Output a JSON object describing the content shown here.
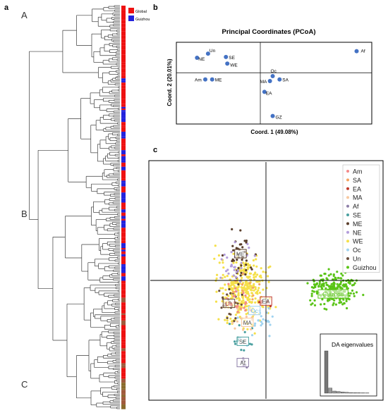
{
  "panel_labels": {
    "a": "a",
    "b": "b",
    "c": "c"
  },
  "colors": {
    "global": "#ee1111",
    "guizhou": "#2222dd",
    "tree": "#3a3a3a",
    "pcoa_point": "#4472c4",
    "frame": "#000000"
  },
  "chart_data": [
    {
      "panel": "a",
      "type": "other",
      "description_kind": "phylogenetic-tree",
      "clade_labels": [
        "A",
        "B",
        "C"
      ],
      "legend": [
        {
          "name": "Global",
          "color": "#ee1111"
        },
        {
          "name": "Guizhou",
          "color": "#2222dd"
        }
      ]
    },
    {
      "panel": "b",
      "type": "scatter",
      "title": "Principal Coordinates (PCoA)",
      "xlabel": "Coord. 1 (49.08%)",
      "ylabel": "Coord. 2 (20.01%)",
      "xlim": [
        -0.6,
        0.8
      ],
      "ylim": [
        -0.6,
        0.35
      ],
      "grid": false,
      "points": [
        {
          "label": "Af",
          "x": 0.7,
          "y": 0.26
        },
        {
          "label": "Un",
          "x": -0.38,
          "y": 0.23
        },
        {
          "label": "NE",
          "x": -0.46,
          "y": 0.18
        },
        {
          "label": "SE",
          "x": -0.25,
          "y": 0.19
        },
        {
          "label": "WE",
          "x": -0.24,
          "y": 0.11
        },
        {
          "label": "Oc",
          "x": 0.09,
          "y": -0.04
        },
        {
          "label": "SA",
          "x": 0.14,
          "y": -0.08
        },
        {
          "label": "MA",
          "x": 0.07,
          "y": -0.1
        },
        {
          "label": "Am",
          "x": -0.4,
          "y": -0.08
        },
        {
          "label": "ME",
          "x": -0.35,
          "y": -0.08
        },
        {
          "label": "EA",
          "x": 0.03,
          "y": -0.23
        },
        {
          "label": "GZ",
          "x": 0.09,
          "y": -0.52
        }
      ]
    },
    {
      "panel": "c",
      "type": "scatter",
      "title": "",
      "xlim": [
        -5,
        5
      ],
      "ylim": [
        -5,
        5
      ],
      "grid": false,
      "legend_position": "top-right",
      "series": [
        {
          "name": "Am",
          "color": "#f48a8a"
        },
        {
          "name": "SA",
          "color": "#f4a460"
        },
        {
          "name": "EA",
          "color": "#c0392b"
        },
        {
          "name": "MA",
          "color": "#f7c8a0"
        },
        {
          "name": "Af",
          "color": "#8e7fa8"
        },
        {
          "name": "SE",
          "color": "#4aa0a0"
        },
        {
          "name": "ME",
          "color": "#5a3e2b"
        },
        {
          "name": "NE",
          "color": "#b39ddb"
        },
        {
          "name": "WE",
          "color": "#f5e04a"
        },
        {
          "name": "Oc",
          "color": "#9fd3f0"
        },
        {
          "name": "Un",
          "color": "#6b4e3d"
        },
        {
          "name": "Guizhou",
          "color": "#5ac417"
        }
      ],
      "group_labels": [
        {
          "name": "ME",
          "x": -1.1,
          "y": 1.1
        },
        {
          "name": "Un",
          "x": -1.6,
          "y": -1.0
        },
        {
          "name": "Oc",
          "x": -0.5,
          "y": -1.3
        },
        {
          "name": "EA",
          "x": 0.0,
          "y": -0.9
        },
        {
          "name": "MA",
          "x": -0.8,
          "y": -1.8
        },
        {
          "name": "SE",
          "x": -1.0,
          "y": -2.6
        },
        {
          "name": "Af",
          "x": -1.0,
          "y": -3.5
        },
        {
          "name": "Guizhou",
          "x": 2.9,
          "y": -0.6
        }
      ],
      "inset": {
        "title": "DA eigenvalues",
        "values": [
          1.0,
          0.12,
          0.05,
          0.04,
          0.03,
          0.02,
          0.015,
          0.012,
          0.01,
          0.008,
          0.006
        ]
      }
    }
  ]
}
